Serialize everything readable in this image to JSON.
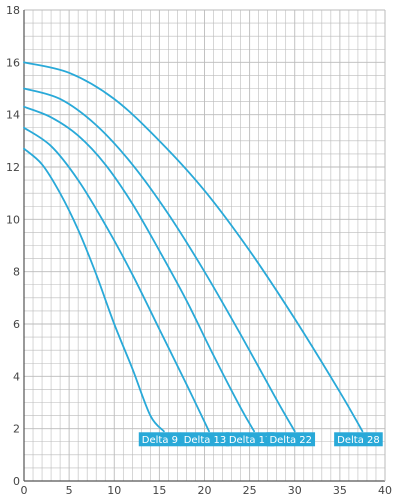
{
  "chart_data": {
    "type": "line",
    "title": "",
    "xlabel": "",
    "ylabel": "",
    "xlim": [
      0,
      40
    ],
    "ylim": [
      0,
      18
    ],
    "x_ticks": [
      0,
      5,
      10,
      15,
      20,
      25,
      30,
      35,
      40
    ],
    "y_ticks": [
      0,
      2,
      4,
      6,
      8,
      10,
      12,
      14,
      16,
      18
    ],
    "x_minor_step": 1,
    "y_minor_step": 0.5,
    "grid": true,
    "colors": {
      "series": "#29a9d8",
      "grid": "#bbbbbb",
      "axis": "#555555",
      "label_bg": "#29a9d8"
    },
    "series": [
      {
        "name": "Delta 9",
        "x": [
          0,
          2,
          4,
          6,
          8,
          10,
          12,
          14,
          15.5
        ],
        "y": [
          12.7,
          12.1,
          11.0,
          9.6,
          7.9,
          6.0,
          4.3,
          2.5,
          1.9
        ]
      },
      {
        "name": "Delta 13",
        "x": [
          0,
          3,
          6,
          9,
          12,
          15,
          18,
          20.5
        ],
        "y": [
          13.5,
          12.8,
          11.5,
          9.8,
          7.9,
          5.8,
          3.7,
          1.9
        ]
      },
      {
        "name": "Delta 17",
        "x": [
          0,
          3,
          6,
          9,
          12,
          15,
          18,
          21,
          24,
          25.5
        ],
        "y": [
          14.3,
          13.9,
          13.2,
          12.1,
          10.6,
          8.8,
          6.9,
          4.8,
          2.8,
          1.9
        ]
      },
      {
        "name": "Delta 22",
        "x": [
          0,
          4,
          8,
          12,
          16,
          20,
          24,
          28,
          30
        ],
        "y": [
          15.0,
          14.6,
          13.6,
          12.1,
          10.2,
          8.0,
          5.6,
          3.1,
          1.9
        ]
      },
      {
        "name": "Delta 28",
        "x": [
          0,
          5,
          10,
          15,
          20,
          25,
          30,
          35,
          37.5
        ],
        "y": [
          16.0,
          15.6,
          14.6,
          13.0,
          11.1,
          8.8,
          6.2,
          3.4,
          1.9
        ]
      }
    ]
  }
}
